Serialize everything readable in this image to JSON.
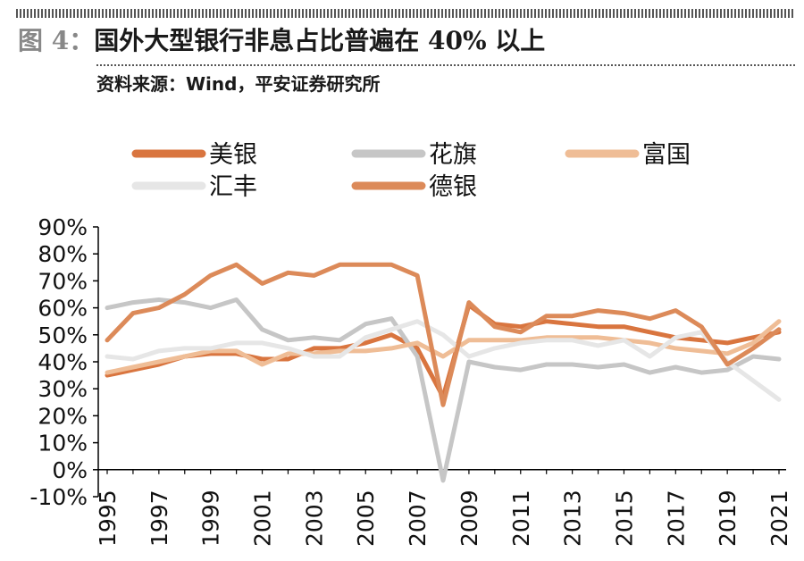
{
  "figure": {
    "label": "图 4：",
    "title": "国外大型银行非息占比普遍在 40% 以上",
    "source": "资料来源：Wind，平安证券研究所"
  },
  "chart_data": {
    "type": "line",
    "x": [
      1995,
      1996,
      1997,
      1998,
      1999,
      2000,
      2001,
      2002,
      2003,
      2004,
      2005,
      2006,
      2007,
      2008,
      2009,
      2010,
      2011,
      2012,
      2013,
      2014,
      2015,
      2016,
      2017,
      2018,
      2019,
      2020,
      2021
    ],
    "x_tick_labels": [
      "1995",
      "1997",
      "1999",
      "2001",
      "2003",
      "2005",
      "2007",
      "2009",
      "2011",
      "2013",
      "2015",
      "2017",
      "2019",
      "2021"
    ],
    "y_tick_labels": [
      "90%",
      "80%",
      "70%",
      "60%",
      "50%",
      "40%",
      "30%",
      "20%",
      "10%",
      "0%",
      "-10%"
    ],
    "ylim": [
      -10,
      90
    ],
    "unit": "%",
    "grid": false,
    "legend_position": "top",
    "series": [
      {
        "name": "美银",
        "color": "#d9753f",
        "values": [
          35,
          37,
          39,
          42,
          43,
          43,
          41,
          41,
          45,
          45,
          47,
          50,
          45,
          27,
          61,
          54,
          53,
          55,
          54,
          53,
          53,
          51,
          49,
          48,
          47,
          49,
          51
        ]
      },
      {
        "name": "花旗",
        "color": "#c6c6c6",
        "values": [
          60,
          62,
          63,
          62,
          60,
          63,
          52,
          48,
          49,
          48,
          54,
          56,
          42,
          -4,
          40,
          38,
          37,
          39,
          39,
          38,
          39,
          36,
          38,
          36,
          37,
          42,
          41
        ]
      },
      {
        "name": "富国",
        "color": "#efbd96",
        "values": [
          36,
          38,
          40,
          42,
          44,
          44,
          39,
          43,
          43,
          44,
          44,
          45,
          47,
          42,
          48,
          48,
          48,
          49,
          49,
          49,
          48,
          47,
          45,
          44,
          43,
          47,
          55
        ]
      },
      {
        "name": "汇丰",
        "color": "#e6e6e6",
        "values": [
          42,
          41,
          44,
          45,
          45,
          47,
          47,
          45,
          42,
          42,
          49,
          52,
          55,
          50,
          42,
          45,
          47,
          48,
          48,
          46,
          48,
          42,
          49,
          51,
          40,
          33,
          26
        ]
      },
      {
        "name": "德银",
        "color": "#dc8a59",
        "values": [
          48,
          58,
          60,
          65,
          72,
          76,
          69,
          73,
          72,
          76,
          76,
          76,
          72,
          24,
          62,
          53,
          51,
          57,
          57,
          59,
          58,
          56,
          59,
          53,
          39,
          45,
          52
        ]
      }
    ]
  }
}
